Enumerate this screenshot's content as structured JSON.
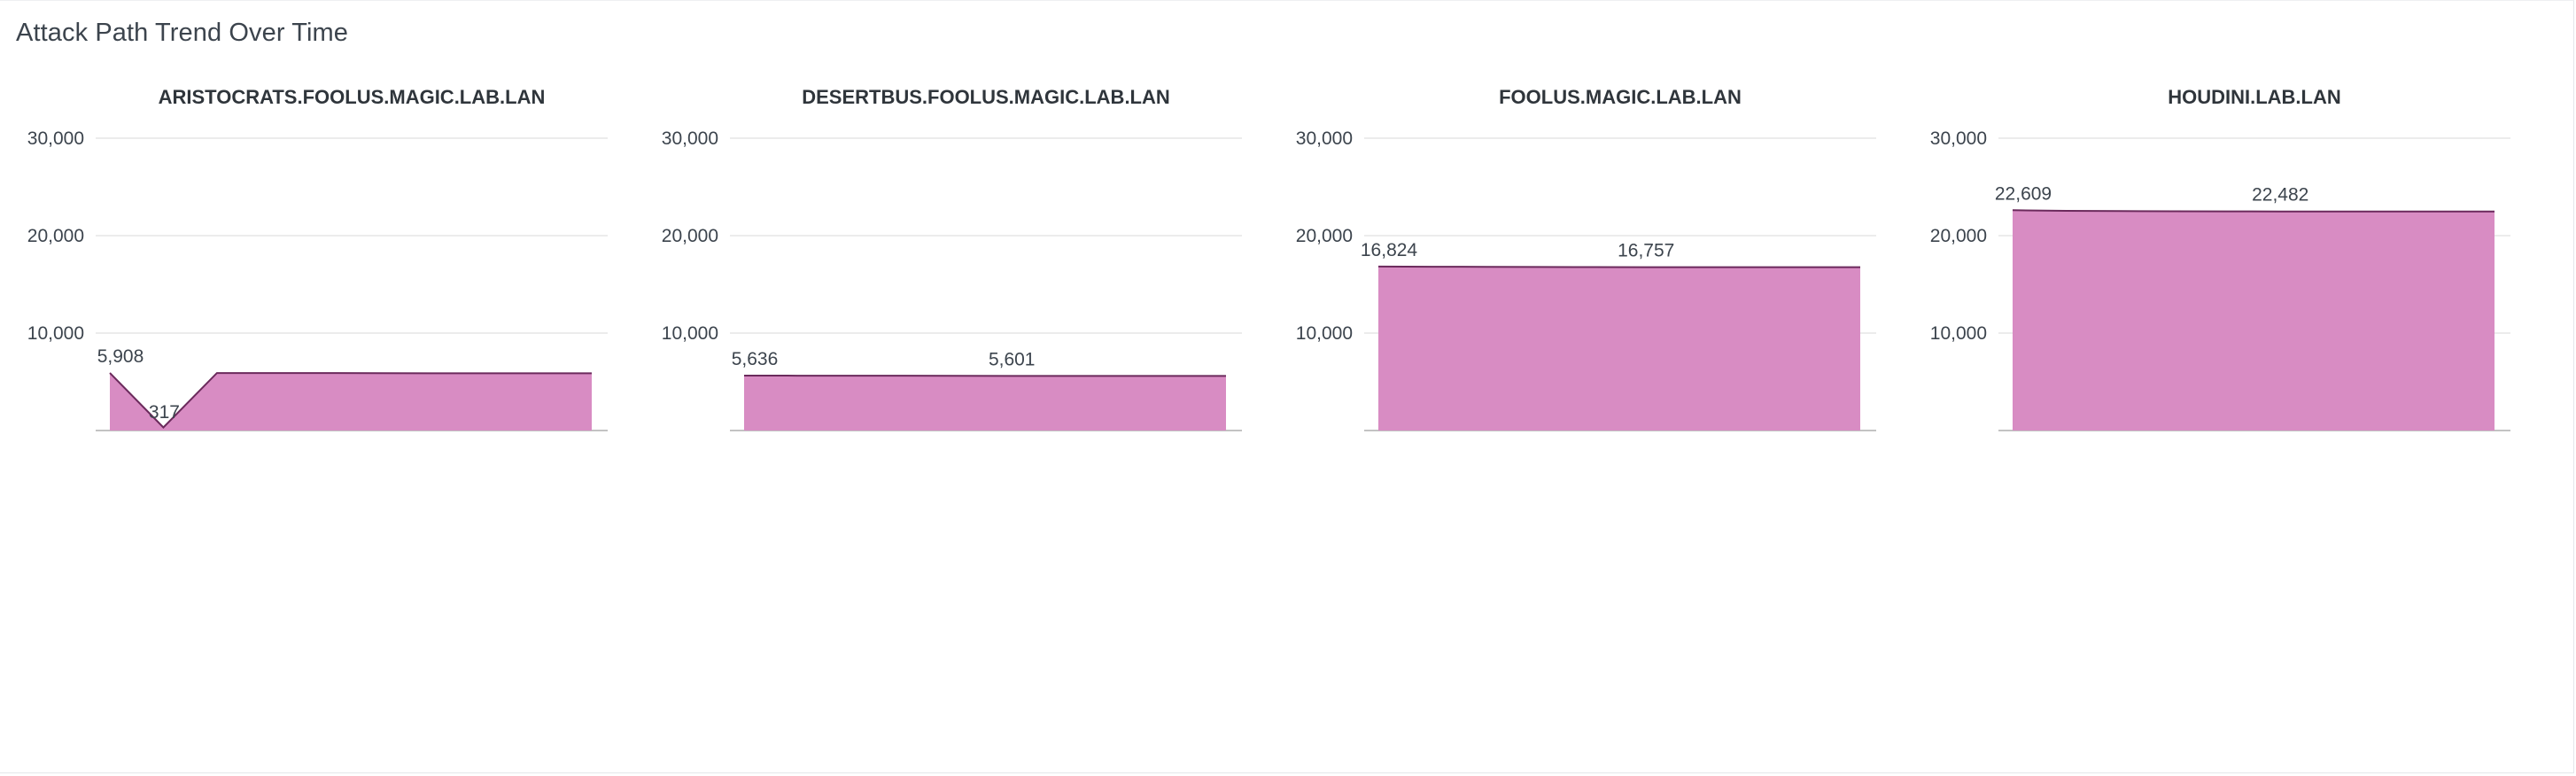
{
  "panel": {
    "title": "Attack Path Trend Over Time"
  },
  "colors": {
    "area_fill": "#d88cc3",
    "area_stroke": "#6b2a5c",
    "grid": "#e6e6e6",
    "baseline": "#c3c3c3"
  },
  "chart_data": [
    {
      "type": "area",
      "title": "ARISTOCRATS.FOOLUS.MAGIC.LAB.LAN",
      "ylim": [
        0,
        30000
      ],
      "yticks": [
        10000,
        20000,
        30000
      ],
      "ytick_labels": [
        "10,000",
        "20,000",
        "30,000"
      ],
      "values": [
        5908,
        317,
        5900,
        5900,
        5900,
        5890,
        5880,
        5880,
        5880,
        5880
      ],
      "data_labels": [
        {
          "index": 0,
          "text": "5,908"
        },
        {
          "index": 1,
          "text": "317"
        }
      ]
    },
    {
      "type": "area",
      "title": "DESERTBUS.FOOLUS.MAGIC.LAB.LAN",
      "ylim": [
        0,
        30000
      ],
      "yticks": [
        10000,
        20000,
        30000
      ],
      "ytick_labels": [
        "10,000",
        "20,000",
        "30,000"
      ],
      "values": [
        5636,
        5630,
        5625,
        5620,
        5615,
        5601,
        5601,
        5601,
        5601,
        5601
      ],
      "data_labels": [
        {
          "index": 0,
          "text": "5,636"
        },
        {
          "index": 5,
          "text": "5,601"
        }
      ]
    },
    {
      "type": "area",
      "title": "FOOLUS.MAGIC.LAB.LAN",
      "ylim": [
        0,
        30000
      ],
      "yticks": [
        10000,
        20000,
        30000
      ],
      "ytick_labels": [
        "10,000",
        "20,000",
        "30,000"
      ],
      "values": [
        16824,
        16810,
        16795,
        16780,
        16770,
        16757,
        16757,
        16757,
        16757,
        16757
      ],
      "data_labels": [
        {
          "index": 0,
          "text": "16,824"
        },
        {
          "index": 5,
          "text": "16,757"
        }
      ]
    },
    {
      "type": "area",
      "title": "HOUDINI.LAB.LAN",
      "ylim": [
        0,
        30000
      ],
      "yticks": [
        10000,
        20000,
        30000
      ],
      "ytick_labels": [
        "10,000",
        "20,000",
        "30,000"
      ],
      "values": [
        22609,
        22550,
        22520,
        22500,
        22490,
        22482,
        22482,
        22482,
        22482,
        22482
      ],
      "data_labels": [
        {
          "index": 0,
          "text": "22,609"
        },
        {
          "index": 5,
          "text": "22,482"
        }
      ]
    }
  ]
}
